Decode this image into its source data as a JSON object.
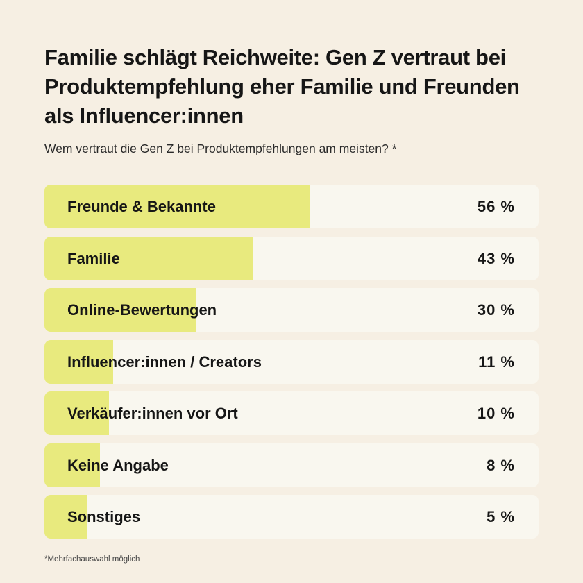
{
  "chart_data": {
    "type": "bar",
    "orientation": "horizontal",
    "title": "Familie schlägt Reichweite: Gen Z vertraut bei Produktempfehlung eher Familie und Freunden als Influencer:innen",
    "subtitle": "Wem vertraut die Gen Z bei Produktempfehlungen am meisten? *",
    "categories": [
      "Freunde & Bekannte",
      "Familie",
      "Online-Bewertungen",
      "Influencer:innen / Creators",
      "Verkäufer:innen vor Ort",
      "Keine Angabe",
      "Sonstiges"
    ],
    "values": [
      56,
      43,
      30,
      11,
      10,
      8,
      5
    ],
    "value_labels": [
      "56 %",
      "43 %",
      "30 %",
      "11 %",
      "10 %",
      "8 %",
      "5 %"
    ],
    "unit": "%",
    "footnote": "*Mehrfachauswahl möglich",
    "colors": {
      "bar": "#e8ea7e",
      "track": "#f9f7ef",
      "background": "#f6efe3"
    }
  }
}
